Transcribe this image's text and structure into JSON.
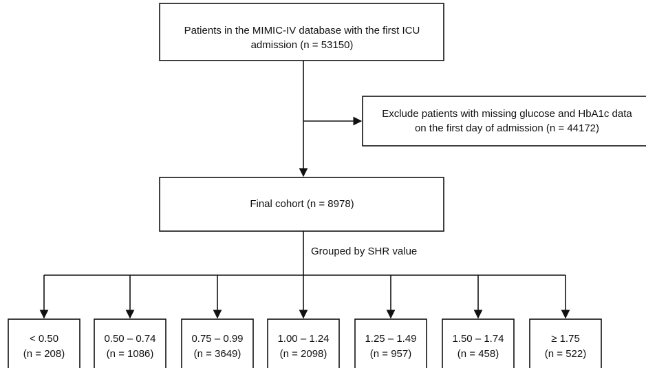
{
  "nodes": [
    {
      "lines": [
        "Patients in the MIMIC-IV database with the first ICU",
        "admission (n = 53150)"
      ]
    },
    {
      "lines": [
        "Exclude patients with missing glucose and HbA1c data",
        "on the first day of admission (n = 44172)"
      ]
    },
    {
      "lines": [
        "Final cohort (n = 8978)"
      ]
    }
  ],
  "edge_label": "Grouped by SHR value",
  "groups": [
    {
      "range": "< 0.50",
      "count": "(n = 208)"
    },
    {
      "range": "0.50 – 0.74",
      "count": "(n = 1086)"
    },
    {
      "range": "0.75 – 0.99",
      "count": "(n = 3649)"
    },
    {
      "range": "1.00 – 1.24",
      "count": "(n = 2098)"
    },
    {
      "range": "1.25 – 1.49",
      "count": "(n = 957)"
    },
    {
      "range": "1.50 – 1.74",
      "count": "(n = 458)"
    },
    {
      "range": "≥ 1.75",
      "count": "(n = 522)"
    }
  ]
}
